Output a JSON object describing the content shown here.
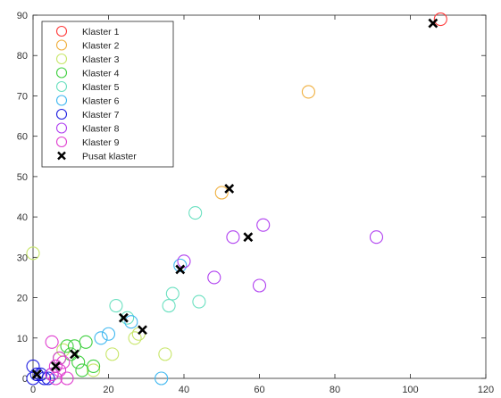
{
  "chart_data": {
    "type": "scatter",
    "title": "",
    "xlabel": "",
    "ylabel": "",
    "xlim": [
      0,
      120
    ],
    "ylim": [
      0,
      90
    ],
    "xticks": [
      0,
      20,
      40,
      60,
      80,
      100,
      120
    ],
    "yticks": [
      0,
      10,
      20,
      30,
      40,
      50,
      60,
      70,
      80,
      90
    ],
    "grid": false,
    "legend_position": "top-left",
    "series": [
      {
        "name": "Klaster 1",
        "color": "#ff3b3b",
        "marker": "circle",
        "points": [
          [
            108,
            89
          ]
        ]
      },
      {
        "name": "Klaster 2",
        "color": "#f0b040",
        "marker": "circle",
        "points": [
          [
            73,
            71
          ],
          [
            50,
            46
          ]
        ]
      },
      {
        "name": "Klaster 3",
        "color": "#c8e66a",
        "marker": "circle",
        "points": [
          [
            0,
            31
          ],
          [
            21,
            6
          ],
          [
            27,
            10
          ],
          [
            28,
            11
          ],
          [
            35,
            6
          ],
          [
            16,
            2
          ],
          [
            8,
            7
          ]
        ]
      },
      {
        "name": "Klaster 4",
        "color": "#40d040",
        "marker": "circle",
        "points": [
          [
            9,
            8
          ],
          [
            11,
            8
          ],
          [
            14,
            9
          ],
          [
            12,
            4
          ],
          [
            16,
            3
          ],
          [
            13,
            2
          ],
          [
            7,
            5
          ],
          [
            10,
            6
          ]
        ]
      },
      {
        "name": "Klaster 5",
        "color": "#6ae0c0",
        "marker": "circle",
        "points": [
          [
            43,
            41
          ],
          [
            37,
            21
          ],
          [
            36,
            18
          ],
          [
            44,
            19
          ],
          [
            22,
            18
          ],
          [
            25,
            15
          ]
        ]
      },
      {
        "name": "Klaster 6",
        "color": "#40b8f0",
        "marker": "circle",
        "points": [
          [
            39,
            28
          ],
          [
            26,
            14
          ],
          [
            20,
            11
          ],
          [
            18,
            10
          ],
          [
            34,
            0
          ]
        ]
      },
      {
        "name": "Klaster 7",
        "color": "#2020e0",
        "marker": "circle",
        "points": [
          [
            0,
            3
          ],
          [
            0,
            0
          ],
          [
            2,
            1
          ],
          [
            3,
            0
          ],
          [
            4,
            0
          ],
          [
            1,
            1
          ],
          [
            5,
            1
          ]
        ]
      },
      {
        "name": "Klaster 8",
        "color": "#b040f0",
        "marker": "circle",
        "points": [
          [
            53,
            35
          ],
          [
            48,
            25
          ],
          [
            60,
            23
          ],
          [
            91,
            35
          ],
          [
            40,
            29
          ],
          [
            61,
            38
          ]
        ]
      },
      {
        "name": "Klaster 9",
        "color": "#e040d0",
        "marker": "circle",
        "points": [
          [
            5,
            9
          ],
          [
            6,
            3
          ],
          [
            7,
            2
          ],
          [
            8,
            4
          ],
          [
            9,
            0
          ],
          [
            7,
            5
          ],
          [
            5,
            1
          ],
          [
            6,
            0
          ]
        ]
      },
      {
        "name": "Pusat klaster",
        "color": "#000000",
        "marker": "x",
        "points": [
          [
            106,
            88
          ],
          [
            52,
            47
          ],
          [
            57,
            35
          ],
          [
            39,
            27
          ],
          [
            24,
            15
          ],
          [
            29,
            12
          ],
          [
            11,
            6
          ],
          [
            6,
            3
          ],
          [
            1,
            1
          ]
        ]
      }
    ]
  }
}
